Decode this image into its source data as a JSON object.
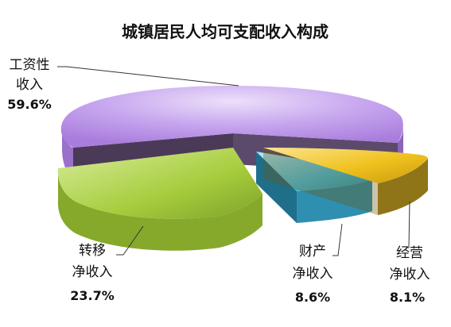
{
  "chart_data": {
    "type": "pie",
    "title": "城镇居民人均可支配收入构成",
    "slices": [
      {
        "label_lines": [
          "工资性",
          "收入"
        ],
        "value_text": "59.6%",
        "value": 59.6,
        "color": "#b98ee8"
      },
      {
        "label_lines": [
          "经营",
          "净收入"
        ],
        "value_text": "8.1%",
        "value": 8.1,
        "color": "#f0c21e"
      },
      {
        "label_lines": [
          "财产",
          "净收入"
        ],
        "value_text": "8.6%",
        "value": 8.6,
        "color": "#45c3e8"
      },
      {
        "label_lines": [
          "转移",
          "净收入"
        ],
        "value_text": "23.7%",
        "value": 23.7,
        "color": "#a6cc3c"
      }
    ]
  }
}
